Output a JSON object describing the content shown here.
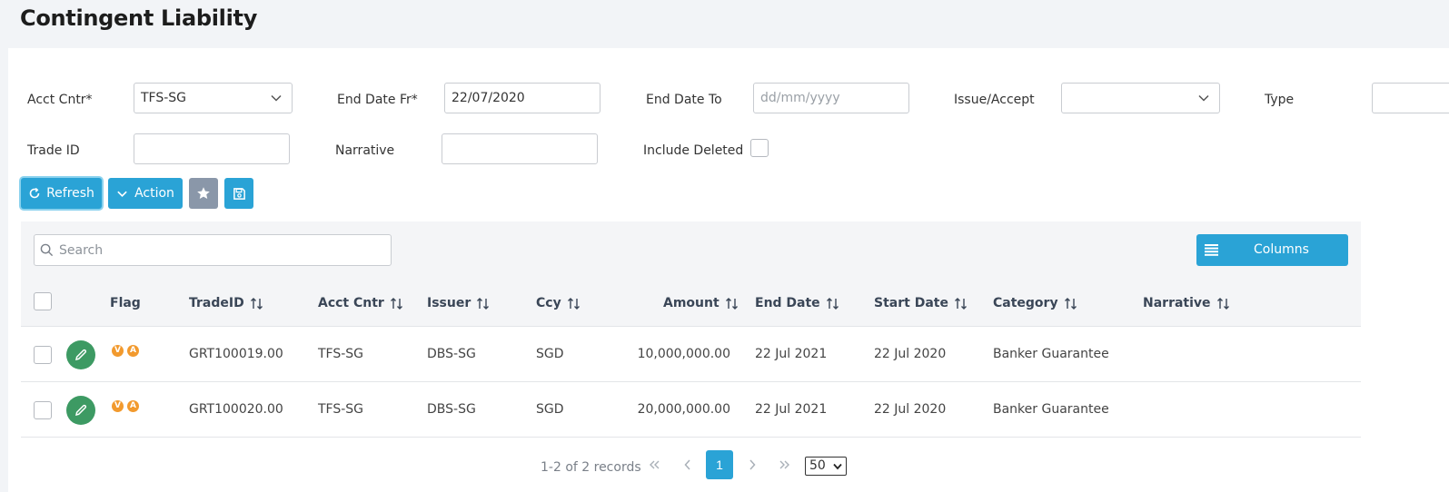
{
  "page": {
    "title": "Contingent Liability"
  },
  "filters": {
    "acct_cntr": {
      "label": "Acct Cntr*",
      "value": "TFS-SG"
    },
    "end_date_fr": {
      "label": "End Date Fr*",
      "value": "22/07/2020"
    },
    "end_date_to": {
      "label": "End Date To",
      "placeholder": "dd/mm/yyyy"
    },
    "issue_accept": {
      "label": "Issue/Accept",
      "value": ""
    },
    "type": {
      "label": "Type",
      "value": ""
    },
    "trade_id": {
      "label": "Trade ID",
      "value": ""
    },
    "narrative": {
      "label": "Narrative",
      "value": ""
    },
    "include_deleted": {
      "label": "Include Deleted",
      "checked": false
    }
  },
  "toolbar": {
    "refresh_label": "Refresh",
    "action_label": "Action",
    "favorite_icon": "star-icon",
    "save_icon": "floppy-disk-icon"
  },
  "grid": {
    "search_placeholder": "Search",
    "columns_label": "Columns",
    "headers": {
      "flag": "Flag",
      "trade_id": "TradeID",
      "acct_cntr": "Acct Cntr",
      "issuer": "Issuer",
      "ccy": "Ccy",
      "amount": "Amount",
      "end_date": "End Date",
      "start_date": "Start Date",
      "category": "Category",
      "narrative": "Narrative"
    },
    "rows": [
      {
        "flags": [
          "V",
          "A"
        ],
        "trade_id": "GRT100019.00",
        "acct_cntr": "TFS-SG",
        "issuer": "DBS-SG",
        "ccy": "SGD",
        "amount": "10,000,000.00",
        "end_date": "22 Jul 2021",
        "start_date": "22 Jul 2020",
        "category": "Banker Guarantee",
        "narrative": ""
      },
      {
        "flags": [
          "V",
          "A"
        ],
        "trade_id": "GRT100020.00",
        "acct_cntr": "TFS-SG",
        "issuer": "DBS-SG",
        "ccy": "SGD",
        "amount": "20,000,000.00",
        "end_date": "22 Jul 2021",
        "start_date": "22 Jul 2020",
        "category": "Banker Guarantee",
        "narrative": ""
      }
    ]
  },
  "pagination": {
    "summary": "1-2 of 2 records",
    "current_page": "1",
    "page_size": "50",
    "page_size_options": [
      "50"
    ]
  },
  "colors": {
    "primary": "#2aa3d6",
    "edit": "#3d9a63",
    "flag": "#f29a2e",
    "secondary": "#8a97a9"
  }
}
